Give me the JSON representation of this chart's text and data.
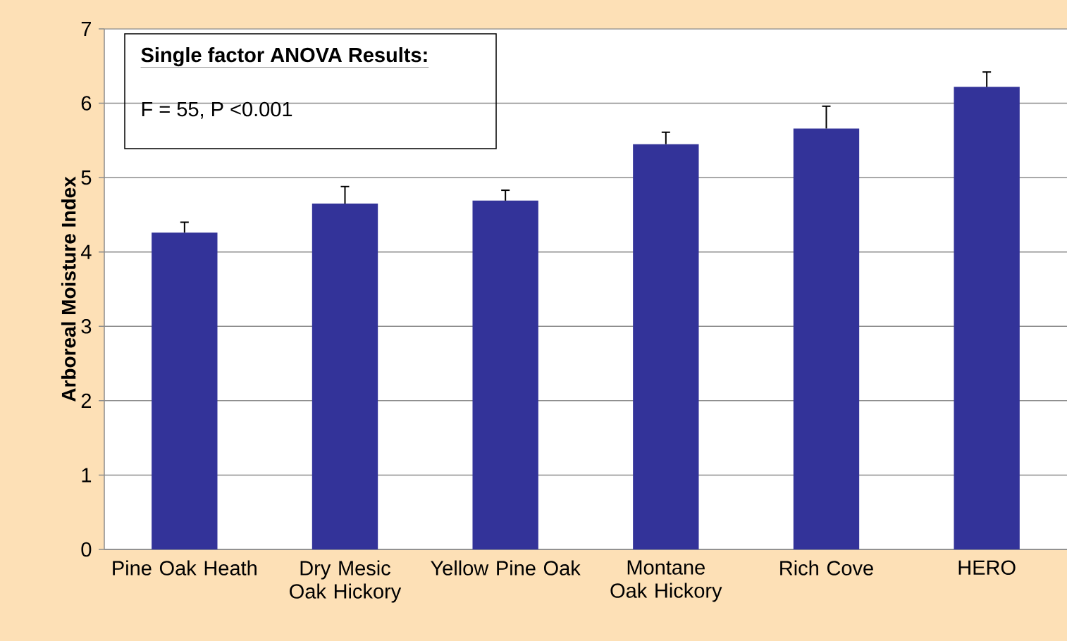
{
  "chart_data": {
    "type": "bar",
    "ylabel": "Arboreal Moisture Index",
    "categories": [
      "Pine Oak Heath",
      "Dry Mesic Oak Hickory",
      "Yellow Pine Oak",
      "Montane Oak Hickory",
      "Rich Cove",
      "HERO"
    ],
    "values": [
      4.26,
      4.65,
      4.69,
      5.45,
      5.66,
      6.22
    ],
    "errors": [
      [
        4.26,
        4.4
      ],
      [
        4.65,
        4.88
      ],
      [
        4.69,
        4.83
      ],
      [
        5.45,
        5.61
      ],
      [
        5.66,
        5.96
      ],
      [
        6.22,
        6.42
      ]
    ],
    "color": "#333399",
    "ylim": [
      0,
      7
    ],
    "yticks": [
      0,
      1,
      2,
      3,
      4,
      5,
      6,
      7
    ],
    "grid": "y",
    "annotations": [
      "Single factor ANOVA Results:",
      "F = 55, P <0.001"
    ]
  }
}
